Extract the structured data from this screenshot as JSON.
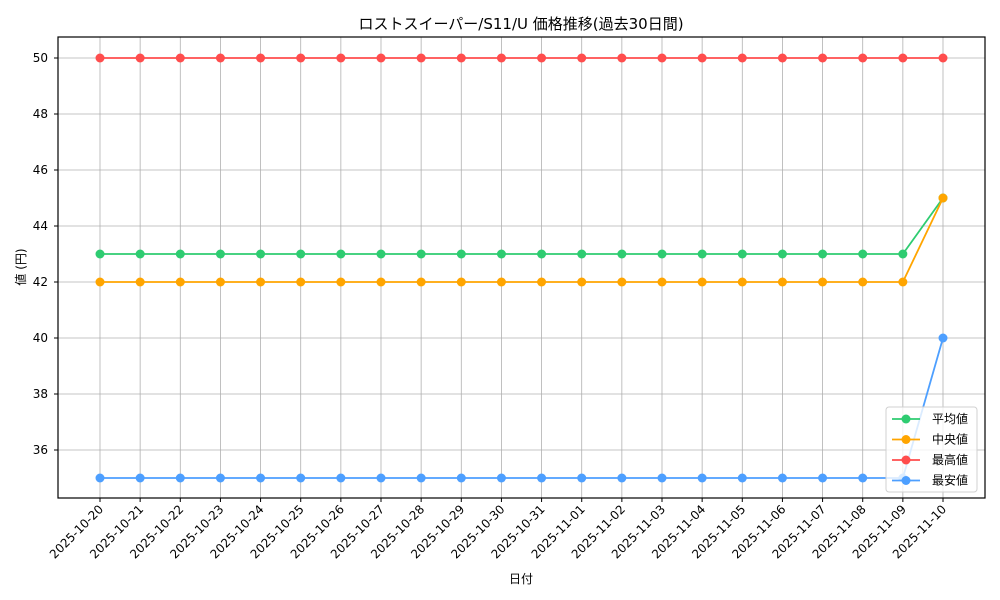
{
  "chart_data": {
    "type": "line",
    "title": "ロストスイーパー/S11/U 価格推移(過去30日間)",
    "xlabel": "日付",
    "ylabel": "値 (円)",
    "ylim": [
      34.2,
      50.8
    ],
    "yticks": [
      36,
      38,
      40,
      42,
      44,
      46,
      48,
      50
    ],
    "grid": true,
    "legend_position": "lower right",
    "categories": [
      "2025-10-20",
      "2025-10-21",
      "2025-10-22",
      "2025-10-23",
      "2025-10-24",
      "2025-10-25",
      "2025-10-26",
      "2025-10-27",
      "2025-10-28",
      "2025-10-29",
      "2025-10-30",
      "2025-10-31",
      "2025-11-01",
      "2025-11-02",
      "2025-11-03",
      "2025-11-04",
      "2025-11-05",
      "2025-11-06",
      "2025-11-07",
      "2025-11-08",
      "2025-11-09",
      "2025-11-10"
    ],
    "series": [
      {
        "name": "平均値",
        "color": "#2ecc71",
        "values": [
          43,
          43,
          43,
          43,
          43,
          43,
          43,
          43,
          43,
          43,
          43,
          43,
          43,
          43,
          43,
          43,
          43,
          43,
          43,
          43,
          43,
          45
        ]
      },
      {
        "name": "中央値",
        "color": "#ffa500",
        "values": [
          42,
          42,
          42,
          42,
          42,
          42,
          42,
          42,
          42,
          42,
          42,
          42,
          42,
          42,
          42,
          42,
          42,
          42,
          42,
          42,
          42,
          45
        ]
      },
      {
        "name": "最高値",
        "color": "#ff4d4d",
        "values": [
          50,
          50,
          50,
          50,
          50,
          50,
          50,
          50,
          50,
          50,
          50,
          50,
          50,
          50,
          50,
          50,
          50,
          50,
          50,
          50,
          50,
          50
        ]
      },
      {
        "name": "最安値",
        "color": "#4d9fff",
        "values": [
          35,
          35,
          35,
          35,
          35,
          35,
          35,
          35,
          35,
          35,
          35,
          35,
          35,
          35,
          35,
          35,
          35,
          35,
          35,
          35,
          35,
          40
        ]
      }
    ]
  }
}
